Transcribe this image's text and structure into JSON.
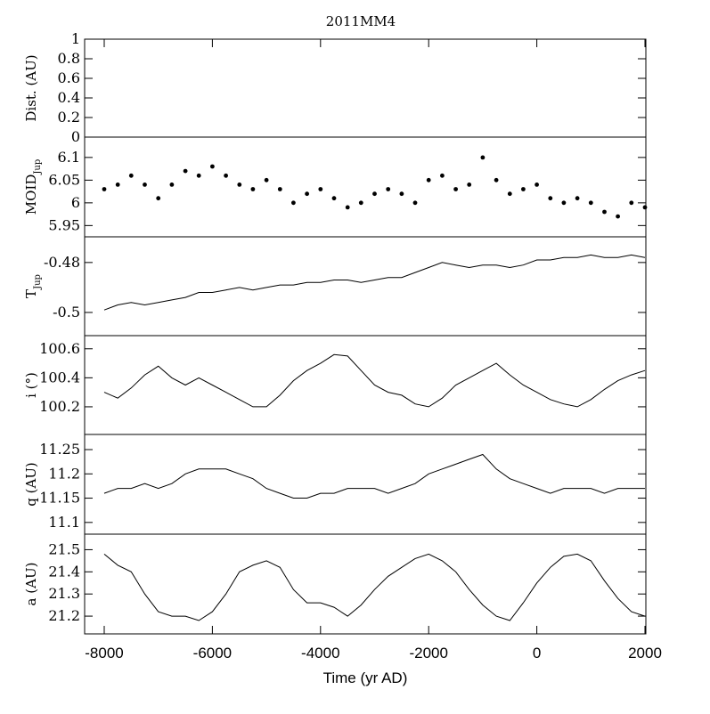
{
  "chart_data": {
    "type": "line",
    "title": "2011MM4",
    "xlabel": "Time (yr AD)",
    "xlim": [
      -8000,
      2000
    ],
    "x_ticks": [
      "-8000",
      "-6000",
      "-4000",
      "-2000",
      "0",
      "2000"
    ],
    "x_tick_values": [
      -8000,
      -6000,
      -4000,
      -2000,
      0,
      2000
    ],
    "panels": [
      {
        "id": "dist",
        "ylabel": "Dist. (AU)",
        "ylabel_sub": "",
        "ylim": [
          0,
          1
        ],
        "y_ticks": [
          "0",
          "0.2",
          "0.4",
          "0.6",
          "0.8",
          "1"
        ],
        "y_tick_values": [
          0,
          0.2,
          0.4,
          0.6,
          0.8,
          1
        ],
        "series_type": "none",
        "x": [],
        "y": []
      },
      {
        "id": "moid",
        "ylabel": "MOID",
        "ylabel_sub": "Jup",
        "ylim": [
          5.935,
          6.135
        ],
        "y_ticks": [
          "5.95",
          "6",
          "6.05",
          "6.1"
        ],
        "y_tick_values": [
          5.95,
          6.0,
          6.05,
          6.1
        ],
        "series_type": "scatter",
        "x": [
          -8000,
          -7750,
          -7500,
          -7250,
          -7000,
          -6750,
          -6500,
          -6250,
          -6000,
          -5750,
          -5500,
          -5250,
          -5000,
          -4750,
          -4500,
          -4250,
          -4000,
          -3750,
          -3500,
          -3250,
          -3000,
          -2750,
          -2500,
          -2250,
          -2000,
          -1750,
          -1500,
          -1250,
          -1000,
          -750,
          -500,
          -250,
          0,
          250,
          500,
          750,
          1000,
          1250,
          1500,
          1750,
          2000
        ],
        "y": [
          6.03,
          6.04,
          6.06,
          6.04,
          6.01,
          6.04,
          6.07,
          6.06,
          6.08,
          6.06,
          6.04,
          6.03,
          6.05,
          6.03,
          6.0,
          6.02,
          6.03,
          6.01,
          5.99,
          6.0,
          6.02,
          6.03,
          6.02,
          6.0,
          6.05,
          6.06,
          6.03,
          6.04,
          6.1,
          6.05,
          6.02,
          6.03,
          6.04,
          6.01,
          6.0,
          6.01,
          6.0,
          5.98,
          5.97,
          6.0,
          5.99
        ]
      },
      {
        "id": "tjup",
        "ylabel": "T",
        "ylabel_sub": "Jup",
        "ylim": [
          -0.5075,
          -0.4715
        ],
        "y_ticks": [
          "-0.5",
          "-0.48"
        ],
        "y_tick_values": [
          -0.5,
          -0.48
        ],
        "series_type": "line",
        "x": [
          -8000,
          -7750,
          -7500,
          -7250,
          -7000,
          -6750,
          -6500,
          -6250,
          -6000,
          -5750,
          -5500,
          -5250,
          -5000,
          -4750,
          -4500,
          -4250,
          -4000,
          -3750,
          -3500,
          -3250,
          -3000,
          -2750,
          -2500,
          -2250,
          -2000,
          -1750,
          -1500,
          -1250,
          -1000,
          -750,
          -500,
          -250,
          0,
          250,
          500,
          750,
          1000,
          1250,
          1500,
          1750,
          2000
        ],
        "y": [
          -0.499,
          -0.497,
          -0.496,
          -0.497,
          -0.496,
          -0.495,
          -0.494,
          -0.492,
          -0.492,
          -0.491,
          -0.49,
          -0.491,
          -0.49,
          -0.489,
          -0.489,
          -0.488,
          -0.488,
          -0.487,
          -0.487,
          -0.488,
          -0.487,
          -0.486,
          -0.486,
          -0.484,
          -0.482,
          -0.48,
          -0.481,
          -0.482,
          -0.481,
          -0.481,
          -0.482,
          -0.481,
          -0.479,
          -0.479,
          -0.478,
          -0.478,
          -0.477,
          -0.478,
          -0.478,
          -0.477,
          -0.478
        ]
      },
      {
        "id": "inc",
        "ylabel": "i (°)",
        "ylabel_sub": "",
        "ylim": [
          100.04,
          100.66
        ],
        "y_ticks": [
          "100.2",
          "100.4",
          "100.6"
        ],
        "y_tick_values": [
          100.2,
          100.4,
          100.6
        ],
        "series_type": "line",
        "x": [
          -8000,
          -7750,
          -7500,
          -7250,
          -7000,
          -6750,
          -6500,
          -6250,
          -6000,
          -5750,
          -5500,
          -5250,
          -5000,
          -4750,
          -4500,
          -4250,
          -4000,
          -3750,
          -3500,
          -3250,
          -3000,
          -2750,
          -2500,
          -2250,
          -2000,
          -1750,
          -1500,
          -1250,
          -1000,
          -750,
          -500,
          -250,
          0,
          250,
          500,
          750,
          1000,
          1250,
          1500,
          1750,
          2000
        ],
        "y": [
          100.3,
          100.26,
          100.33,
          100.42,
          100.48,
          100.4,
          100.35,
          100.4,
          100.35,
          100.3,
          100.25,
          100.2,
          100.2,
          100.28,
          100.38,
          100.45,
          100.5,
          100.56,
          100.55,
          100.45,
          100.35,
          100.3,
          100.28,
          100.22,
          100.2,
          100.26,
          100.35,
          100.4,
          100.45,
          100.5,
          100.42,
          100.35,
          100.3,
          100.25,
          100.22,
          100.2,
          100.25,
          100.32,
          100.38,
          100.42,
          100.45
        ]
      },
      {
        "id": "q",
        "ylabel": "q (AU)",
        "ylabel_sub": "",
        "ylim": [
          11.085,
          11.272
        ],
        "y_ticks": [
          "11.1",
          "11.15",
          "11.2",
          "11.25"
        ],
        "y_tick_values": [
          11.1,
          11.15,
          11.2,
          11.25
        ],
        "series_type": "line",
        "x": [
          -8000,
          -7750,
          -7500,
          -7250,
          -7000,
          -6750,
          -6500,
          -6250,
          -6000,
          -5750,
          -5500,
          -5250,
          -5000,
          -4750,
          -4500,
          -4250,
          -4000,
          -3750,
          -3500,
          -3250,
          -3000,
          -2750,
          -2500,
          -2250,
          -2000,
          -1750,
          -1500,
          -1250,
          -1000,
          -750,
          -500,
          -250,
          0,
          250,
          500,
          750,
          1000,
          1250,
          1500,
          1750,
          2000
        ],
        "y": [
          11.16,
          11.17,
          11.17,
          11.18,
          11.17,
          11.18,
          11.2,
          11.21,
          11.21,
          11.21,
          11.2,
          11.19,
          11.17,
          11.16,
          11.15,
          11.15,
          11.16,
          11.16,
          11.17,
          11.17,
          11.17,
          11.16,
          11.17,
          11.18,
          11.2,
          11.21,
          11.22,
          11.23,
          11.24,
          11.21,
          11.19,
          11.18,
          11.17,
          11.16,
          11.17,
          11.17,
          11.17,
          11.16,
          11.17,
          11.17,
          11.17
        ]
      },
      {
        "id": "a",
        "ylabel": "a (AU)",
        "ylabel_sub": "",
        "ylim": [
          21.14,
          21.55
        ],
        "y_ticks": [
          "21.2",
          "21.3",
          "21.4",
          "21.5"
        ],
        "y_tick_values": [
          21.2,
          21.3,
          21.4,
          21.5
        ],
        "series_type": "line",
        "x": [
          -8000,
          -7750,
          -7500,
          -7250,
          -7000,
          -6750,
          -6500,
          -6250,
          -6000,
          -5750,
          -5500,
          -5250,
          -5000,
          -4750,
          -4500,
          -4250,
          -4000,
          -3750,
          -3500,
          -3250,
          -3000,
          -2750,
          -2500,
          -2250,
          -2000,
          -1750,
          -1500,
          -1250,
          -1000,
          -750,
          -500,
          -250,
          0,
          250,
          500,
          750,
          1000,
          1250,
          1500,
          1750,
          2000
        ],
        "y": [
          21.48,
          21.43,
          21.4,
          21.3,
          21.22,
          21.2,
          21.2,
          21.18,
          21.22,
          21.3,
          21.4,
          21.43,
          21.45,
          21.42,
          21.32,
          21.26,
          21.26,
          21.24,
          21.2,
          21.25,
          21.32,
          21.38,
          21.42,
          21.46,
          21.48,
          21.45,
          21.4,
          21.32,
          21.25,
          21.2,
          21.18,
          21.26,
          21.35,
          21.42,
          21.47,
          21.48,
          21.45,
          21.36,
          21.28,
          21.22,
          21.2
        ]
      }
    ]
  }
}
